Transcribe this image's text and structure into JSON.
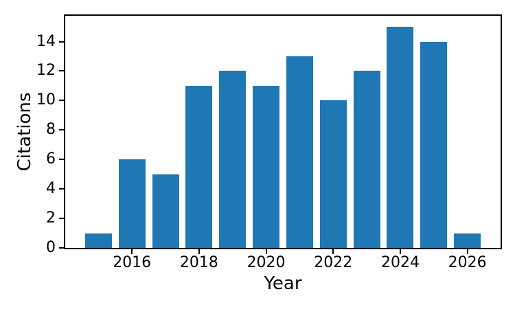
{
  "figure": {
    "background": "#ffffff",
    "text_color": "#000000",
    "spine_color": "#000000"
  },
  "chart_data": {
    "type": "bar",
    "title": "",
    "xlabel": "Year",
    "ylabel": "Citations",
    "categories": [
      2015,
      2016,
      2017,
      2018,
      2019,
      2020,
      2021,
      2022,
      2023,
      2024,
      2025,
      2026
    ],
    "values": [
      1,
      6,
      5,
      11,
      12,
      11,
      13,
      10,
      12,
      15,
      14,
      1
    ],
    "bar_color": "#1f77b4",
    "bar_width": 0.8,
    "xlim": [
      2014.01,
      2026.99
    ],
    "ylim": [
      0,
      15.75
    ],
    "xticks": [
      2016,
      2018,
      2020,
      2022,
      2024,
      2026
    ],
    "yticks": [
      0,
      2,
      4,
      6,
      8,
      10,
      12,
      14
    ],
    "grid": false,
    "legend_position": "none"
  }
}
